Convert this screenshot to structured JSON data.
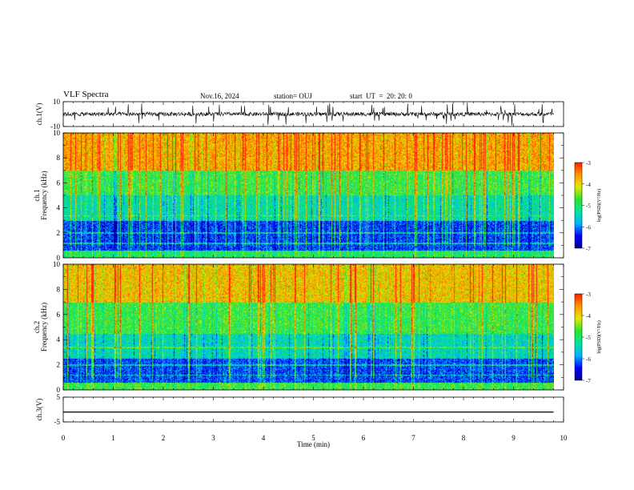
{
  "header": {
    "title": "VLF Spectra",
    "date": "Nov.16, 2024",
    "station": "station= OUJ",
    "start": "start  UT  =  20: 20: 0"
  },
  "chart_data": [
    {
      "type": "line",
      "panel": "ch1-waveform",
      "ylabel": "ch.1(V)",
      "ylim": [
        -10,
        10
      ],
      "yticks": [
        "10",
        "-10"
      ],
      "xlim": [
        0,
        10
      ],
      "description_values": {
        "baseline": 0
      }
    },
    {
      "type": "heatmap",
      "panel": "ch1-spectrogram",
      "ylabel": "ch.1\nFrequency  (kHz)",
      "ylim": [
        0,
        10
      ],
      "yticks": [
        "0",
        "2",
        "4",
        "6",
        "8",
        "10"
      ],
      "xlim": [
        0,
        10
      ],
      "colorbar": {
        "label": "log(PSD)(V²/Hz)",
        "range": [
          -7,
          -3
        ],
        "ticks": [
          "-3",
          "-4",
          "-5",
          "-6",
          "-7"
        ]
      }
    },
    {
      "type": "heatmap",
      "panel": "ch2-spectrogram",
      "ylabel": "ch.2\nFrequency  (kHz)",
      "ylim": [
        0,
        10
      ],
      "yticks": [
        "0",
        "2",
        "4",
        "6",
        "8",
        "10"
      ],
      "xlim": [
        0,
        10
      ],
      "colorbar": {
        "label": "log(PSD)(V²/Hz)",
        "range": [
          -7,
          -3
        ],
        "ticks": [
          "-3",
          "-4",
          "-5",
          "-6",
          "-7"
        ]
      }
    },
    {
      "type": "line",
      "panel": "ch3-waveform",
      "ylabel": "ch.3(V)",
      "ylim": [
        -5,
        5
      ],
      "yticks": [
        "5",
        "-5"
      ],
      "xlim": [
        0,
        10
      ],
      "description_values": {
        "baseline": -1
      }
    }
  ],
  "xaxis": {
    "label": "Time  (min)",
    "ticks": [
      "0",
      "1",
      "2",
      "3",
      "4",
      "5",
      "6",
      "7",
      "8",
      "9",
      "10"
    ],
    "data_end": 9.8
  },
  "colors": {
    "scale": [
      "#00008c",
      "#0000ff",
      "#00b4ff",
      "#00e6a0",
      "#28e628",
      "#e6e600",
      "#ff9600",
      "#ff1e00"
    ]
  }
}
